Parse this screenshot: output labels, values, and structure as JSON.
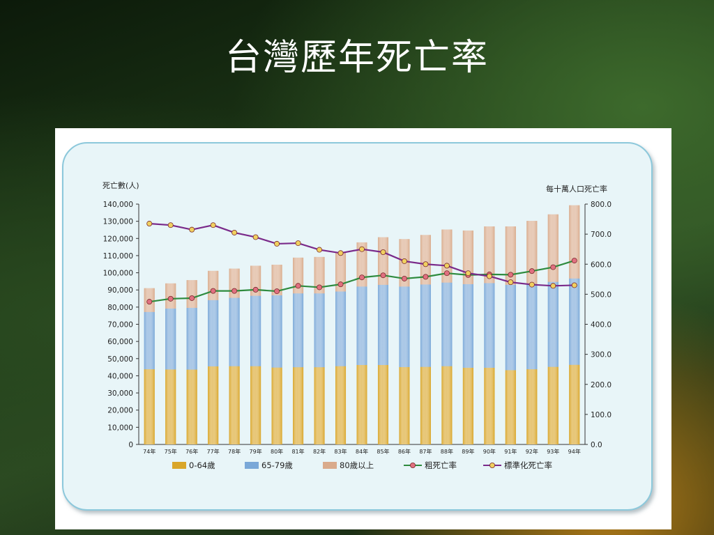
{
  "slide": {
    "title": "台灣歷年死亡率"
  },
  "chart_data": {
    "type": "bar",
    "stacked": true,
    "categories": [
      "74年",
      "75年",
      "76年",
      "77年",
      "78年",
      "79年",
      "80年",
      "81年",
      "82年",
      "83年",
      "84年",
      "85年",
      "86年",
      "87年",
      "88年",
      "89年",
      "90年",
      "91年",
      "92年",
      "93年",
      "94年"
    ],
    "series": [
      {
        "name": "0-64歲",
        "type": "bar",
        "axis": "left",
        "color": "#d9a62a",
        "values": [
          43800,
          43700,
          43600,
          45500,
          45600,
          45600,
          44800,
          45000,
          45000,
          45600,
          46300,
          46300,
          45100,
          45200,
          45600,
          44700,
          44700,
          43300,
          43800,
          45200,
          46400
        ]
      },
      {
        "name": "65-79歲",
        "type": "bar",
        "axis": "left",
        "color": "#7aa8d8",
        "values": [
          33400,
          35500,
          36000,
          38600,
          39800,
          41000,
          42100,
          43000,
          43000,
          43500,
          45700,
          46700,
          46900,
          48000,
          48700,
          48700,
          49300,
          49700,
          49700,
          49500,
          50300
        ]
      },
      {
        "name": "80歲以上",
        "type": "bar",
        "axis": "left",
        "color": "#d9ab8c",
        "values": [
          13800,
          14600,
          16100,
          17000,
          17000,
          17500,
          17800,
          20800,
          21200,
          23000,
          25700,
          27700,
          27600,
          28800,
          30900,
          31200,
          33000,
          34000,
          36700,
          39300,
          42600
        ]
      },
      {
        "name": "粗死亡率",
        "type": "line",
        "axis": "right",
        "color": "#2e8b3e",
        "marker": "#e07080",
        "values": [
          475,
          485,
          487,
          511,
          511,
          515,
          510,
          528,
          523,
          533,
          556,
          563,
          552,
          558,
          570,
          564,
          566,
          565,
          577,
          590,
          612
        ]
      },
      {
        "name": "標準化死亡率",
        "type": "line",
        "axis": "right",
        "color": "#7a2a8a",
        "marker": "#f0d060",
        "values": [
          735,
          730,
          715,
          730,
          705,
          690,
          668,
          670,
          648,
          637,
          650,
          640,
          610,
          600,
          595,
          570,
          560,
          540,
          532,
          528,
          530
        ]
      }
    ],
    "ylabel": "死亡數(人)",
    "y2label": "每十萬人口死亡率",
    "ylim": [
      0,
      140000
    ],
    "y2lim": [
      0,
      800
    ],
    "yticks": [
      "0",
      "10,000",
      "20,000",
      "30,000",
      "40,000",
      "50,000",
      "60,000",
      "70,000",
      "80,000",
      "90,000",
      "100,000",
      "110,000",
      "120,000",
      "130,000",
      "140,000"
    ],
    "y2ticks": [
      "0.0",
      "100.0",
      "200.0",
      "300.0",
      "400.0",
      "500.0",
      "600.0",
      "700.0",
      "800.0"
    ],
    "legend_position": "bottom",
    "grid": false
  }
}
